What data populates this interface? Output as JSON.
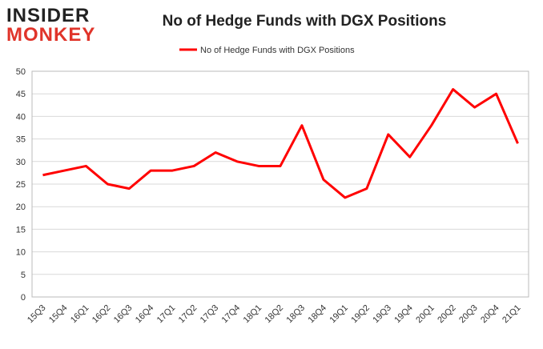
{
  "logo": {
    "line1": "INSIDER",
    "line2": "MONKEY"
  },
  "chart_data": {
    "type": "line",
    "title": "No of Hedge Funds with DGX Positions",
    "categories": [
      "15Q3",
      "15Q4",
      "16Q1",
      "16Q2",
      "16Q3",
      "16Q4",
      "17Q1",
      "17Q2",
      "17Q3",
      "17Q4",
      "18Q1",
      "18Q2",
      "18Q3",
      "18Q4",
      "19Q1",
      "19Q2",
      "19Q3",
      "19Q4",
      "20Q1",
      "20Q2",
      "20Q3",
      "20Q4",
      "21Q1"
    ],
    "series": [
      {
        "name": "No of Hedge Funds with DGX Positions",
        "color": "#ff0000",
        "values": [
          27,
          28,
          29,
          25,
          24,
          28,
          28,
          29,
          32,
          30,
          29,
          29,
          38,
          26,
          22,
          24,
          36,
          31,
          38,
          46,
          42,
          45,
          34
        ]
      }
    ],
    "ylim": [
      0,
      50
    ],
    "yticks": [
      0,
      5,
      10,
      15,
      20,
      25,
      30,
      35,
      40,
      45,
      50
    ],
    "grid": true,
    "legend": "top"
  }
}
